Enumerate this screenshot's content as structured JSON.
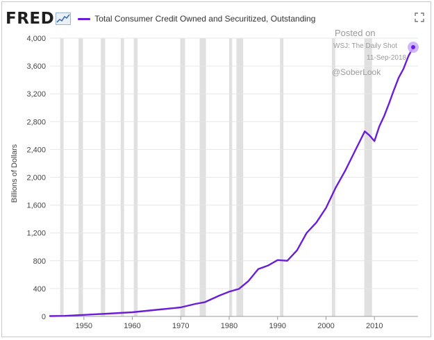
{
  "header": {
    "logo_text": "FRED",
    "series_label": "Total Consumer Credit Owned and Securitized, Outstanding"
  },
  "watermark": {
    "posted": "Posted on",
    "source": "WSJ: The Daily Shot",
    "date": "11-Sep-2018",
    "handle": "@SoberLook"
  },
  "colors": {
    "series": "#6a1cd6",
    "recession": "#e0e0e0",
    "grid": "#e6e6e6",
    "end_marker_halo": "#c9a8ff"
  },
  "icons": {
    "expand": "expand-icon",
    "logo_graph": "line-graph-icon"
  },
  "chart_data": {
    "type": "line",
    "title": "",
    "xlabel": "",
    "ylabel": "Billions of Dollars",
    "xlim": [
      1943,
      2019
    ],
    "ylim": [
      0,
      4000
    ],
    "yticks": [
      0,
      400,
      800,
      1200,
      1600,
      2000,
      2400,
      2800,
      3200,
      3600,
      4000
    ],
    "ytick_labels": [
      "0",
      "400",
      "800",
      "1,200",
      "1,600",
      "2,000",
      "2,400",
      "2,800",
      "3,200",
      "3,600",
      "4,000"
    ],
    "xticks": [
      1950,
      1960,
      1970,
      1980,
      1990,
      2000,
      2010
    ],
    "xtick_labels": [
      "1950",
      "1960",
      "1970",
      "1980",
      "1990",
      "2000",
      "2010"
    ],
    "grid": "horizontal",
    "recessions": [
      [
        1945.1,
        1945.8
      ],
      [
        1948.9,
        1949.8
      ],
      [
        1953.5,
        1954.4
      ],
      [
        1957.6,
        1958.3
      ],
      [
        1960.3,
        1961.1
      ],
      [
        1969.9,
        1970.9
      ],
      [
        1973.9,
        1975.2
      ],
      [
        1980.0,
        1980.6
      ],
      [
        1981.5,
        1982.9
      ],
      [
        1990.5,
        1991.2
      ],
      [
        2001.2,
        2001.9
      ],
      [
        2007.9,
        2009.5
      ]
    ],
    "series": [
      {
        "name": "Total Consumer Credit Owned and Securitized, Outstanding",
        "x": [
          1943,
          1946,
          1950,
          1955,
          1960,
          1965,
          1970,
          1973,
          1975,
          1978,
          1980,
          1982,
          1984,
          1986,
          1988,
          1990,
          1992,
          1994,
          1996,
          1998,
          2000,
          2002,
          2004,
          2006,
          2007,
          2008,
          2009,
          2010,
          2011,
          2012,
          2013,
          2014,
          2015,
          2016,
          2017,
          2018
        ],
        "values": [
          5,
          8,
          22,
          40,
          60,
          95,
          130,
          180,
          205,
          300,
          355,
          395,
          510,
          680,
          730,
          810,
          800,
          950,
          1200,
          1350,
          1560,
          1850,
          2100,
          2380,
          2520,
          2660,
          2600,
          2520,
          2730,
          2880,
          3060,
          3250,
          3430,
          3560,
          3740,
          3870
        ]
      }
    ]
  }
}
